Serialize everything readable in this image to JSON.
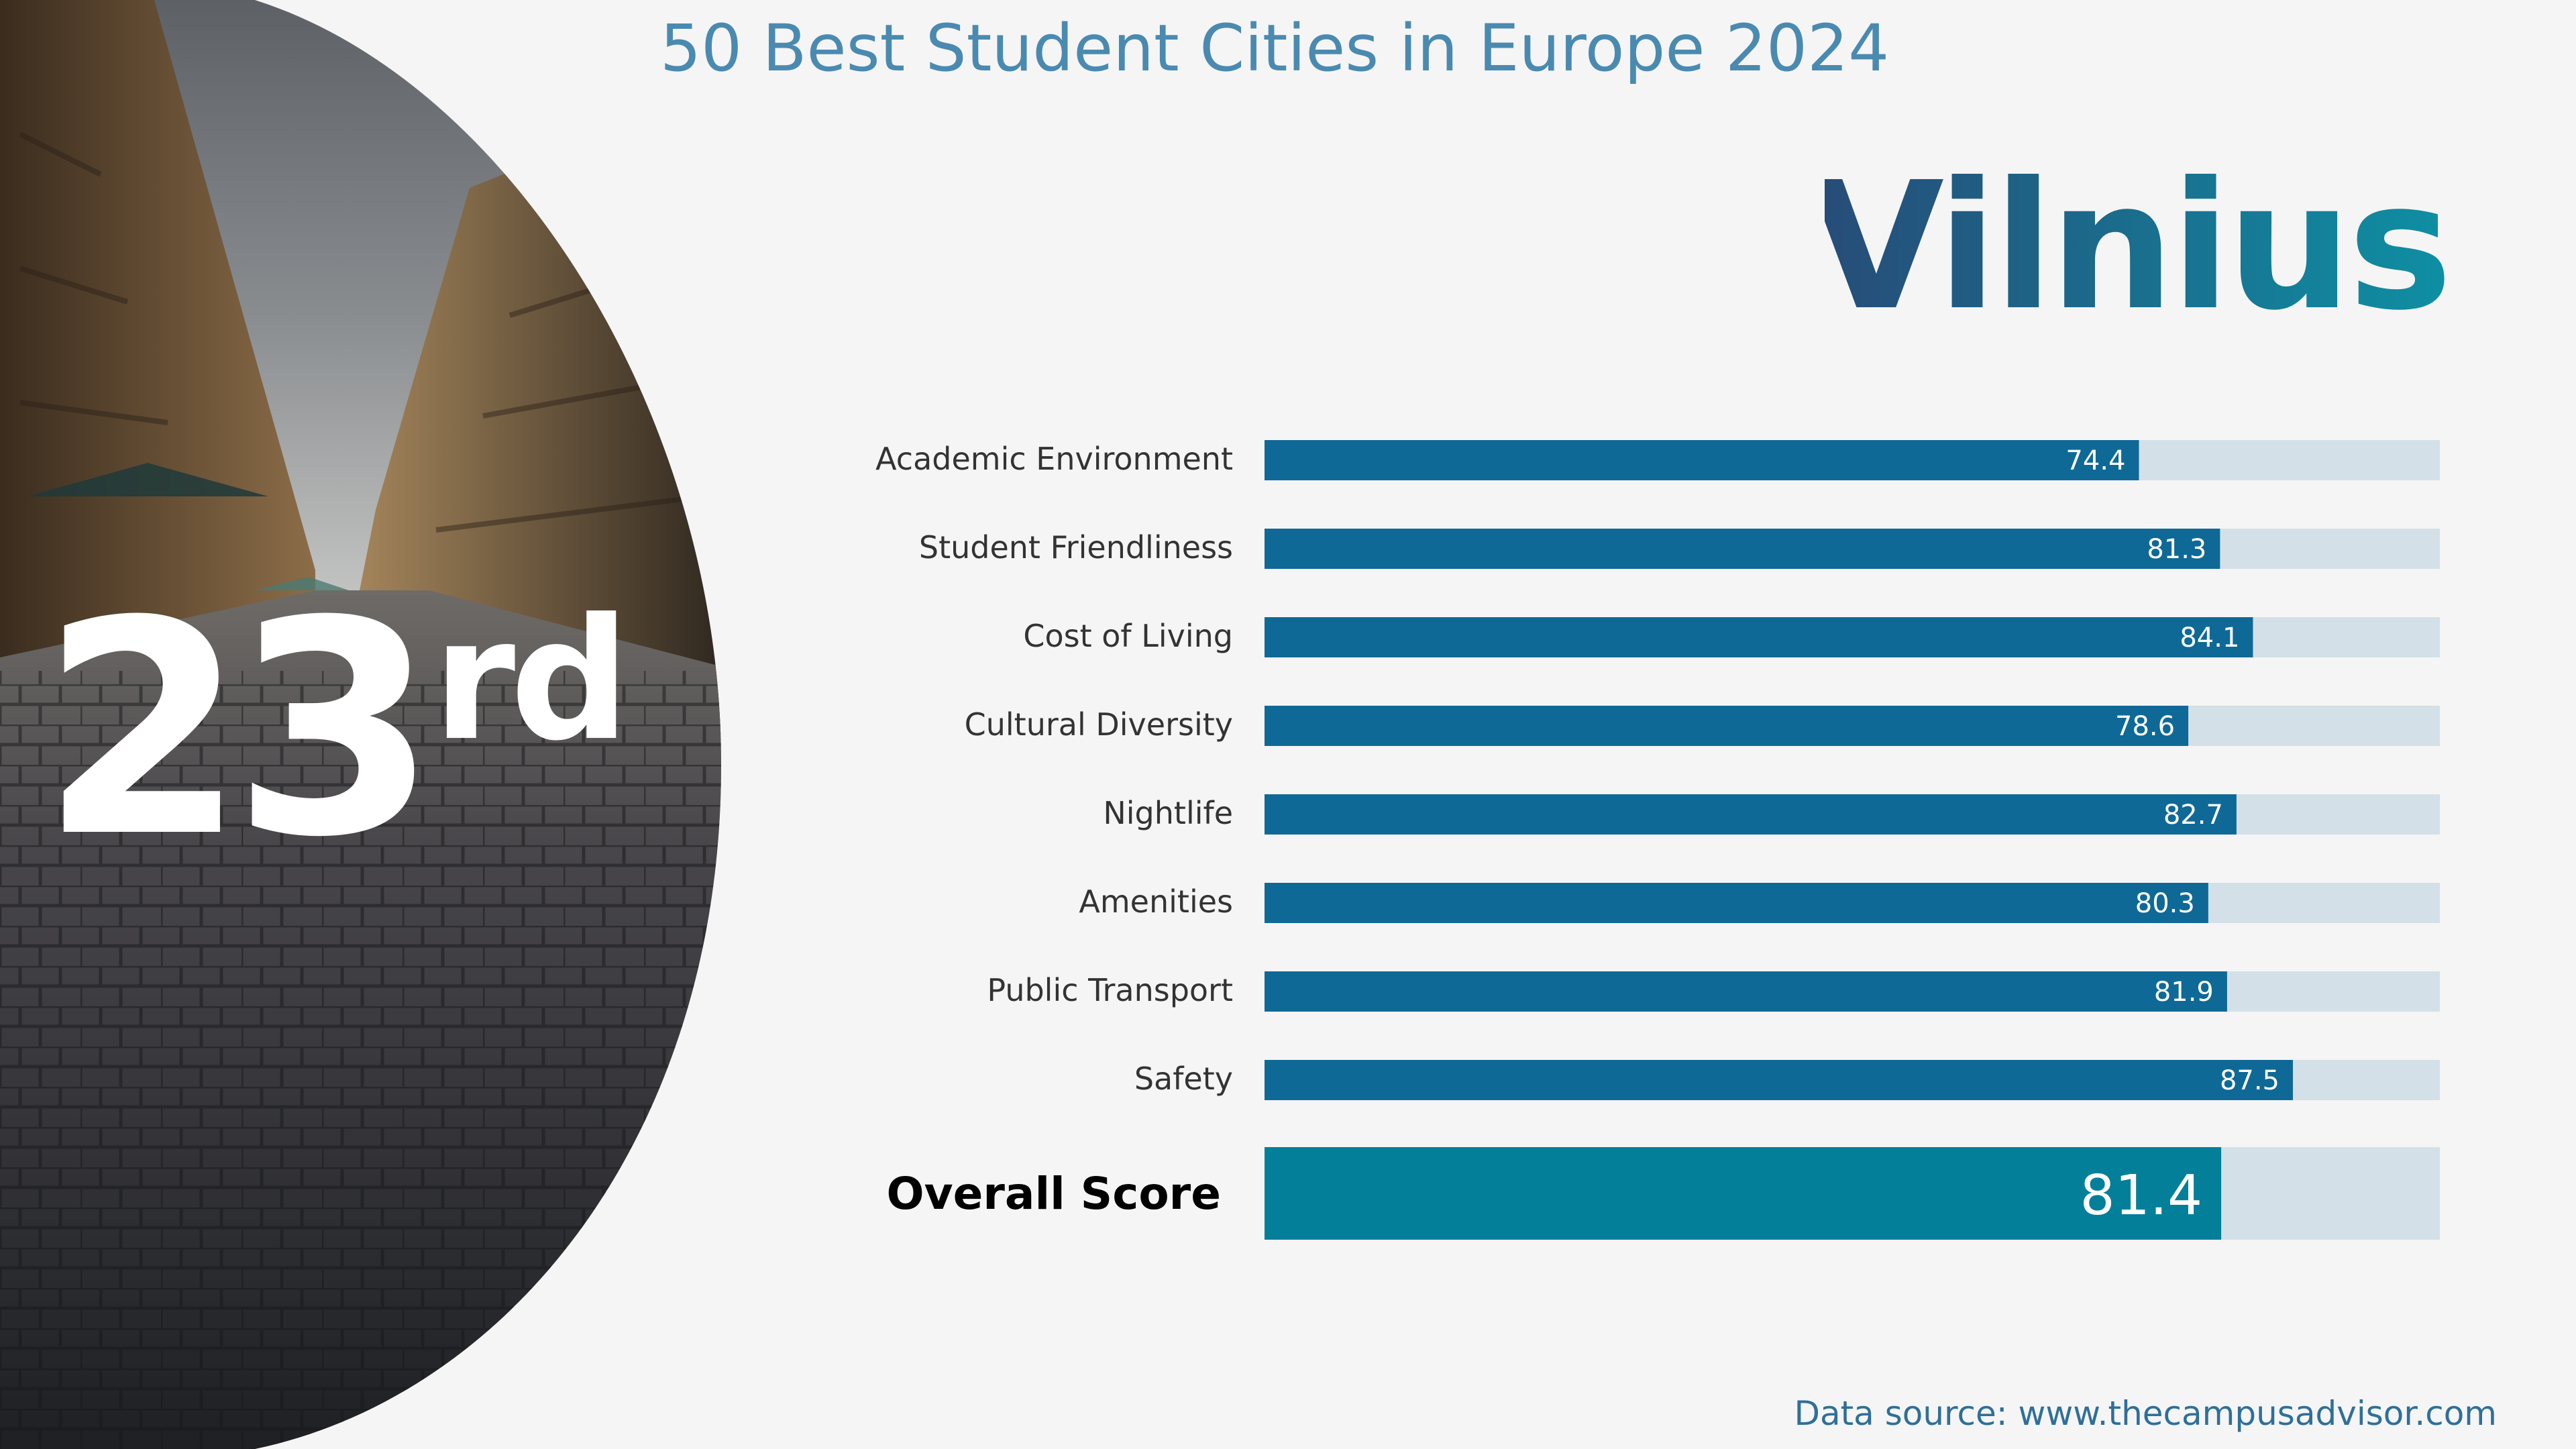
{
  "header": {
    "title": "50 Best Student Cities in Europe 2024"
  },
  "city": {
    "name": "Vilnius",
    "gradient_start": "#274b77",
    "gradient_end": "#0e8fa3"
  },
  "rank": {
    "number": "23",
    "suffix": "rd"
  },
  "chart_data": {
    "type": "bar",
    "orientation": "horizontal",
    "categories": [
      "Academic Environment",
      "Student Friendliness",
      "Cost of Living",
      "Cultural Diversity",
      "Nightlife",
      "Amenities",
      "Public Transport",
      "Safety"
    ],
    "values": [
      74.4,
      81.3,
      84.1,
      78.6,
      82.7,
      80.3,
      81.9,
      87.5
    ],
    "data_labels": [
      "74.4",
      "81.3",
      "84.1",
      "78.6",
      "82.7",
      "80.3",
      "81.9",
      "87.5"
    ],
    "xlim": [
      0,
      100
    ],
    "bar_color": "#0f6996",
    "track_color": "#d3e0e8",
    "grid": false,
    "legend": "none",
    "overall": {
      "label": "Overall Score",
      "value": 81.4,
      "value_label": "81.4",
      "bar_color": "#047f99"
    }
  },
  "footer": {
    "source": "Data source: www.thecampusadvisor.com"
  },
  "theme": {
    "background": "#f5f5f5",
    "title_color": "#4a8ab0",
    "label_color": "#333333",
    "rank_color": "#ffffff"
  }
}
